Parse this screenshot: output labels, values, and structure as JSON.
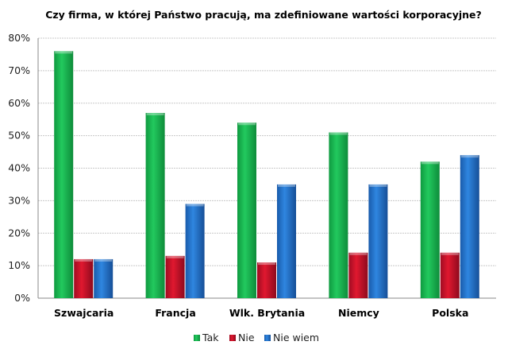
{
  "chart_data": {
    "type": "bar",
    "title": "Czy firma, w której Państwo pracują, ma zdefiniowane wartości korporacyjne?",
    "xlabel": "",
    "ylabel": "",
    "categories": [
      "Szwajcaria",
      "Francja",
      "Wlk. Brytania",
      "Niemcy",
      "Polska"
    ],
    "series": [
      {
        "name": "Tak",
        "color": "#1db954",
        "values": [
          76,
          57,
          54,
          51,
          42
        ]
      },
      {
        "name": "Nie",
        "color": "#c8102e",
        "values": [
          12,
          13,
          11,
          14,
          14
        ]
      },
      {
        "name": "Nie wiem",
        "color": "#1f6fc5",
        "values": [
          12,
          29,
          35,
          35,
          44
        ]
      }
    ],
    "ylim": [
      0,
      80
    ],
    "yticks": [
      0,
      10,
      20,
      30,
      40,
      50,
      60,
      70,
      80
    ],
    "ytick_labels": [
      "0%",
      "10%",
      "20%",
      "30%",
      "40%",
      "50%",
      "60%",
      "70%",
      "80%"
    ],
    "grid": true,
    "legend_position": "bottom"
  }
}
